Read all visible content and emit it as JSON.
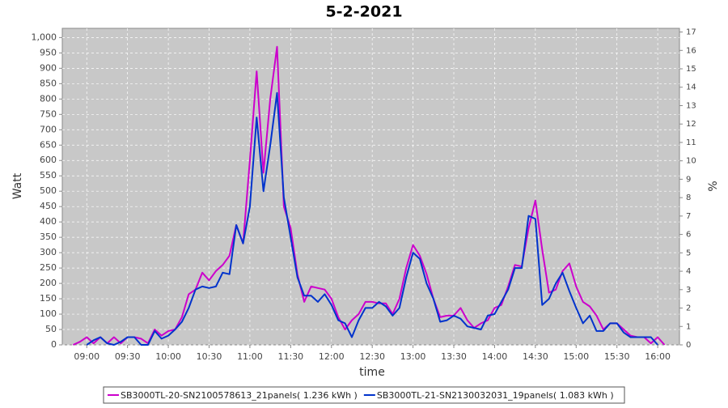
{
  "chart_data": {
    "type": "line",
    "title": "5-2-2021",
    "x_label": "time",
    "y_label": "Watt",
    "y2_label": "%",
    "x": [
      "08:50",
      "08:55",
      "09:00",
      "09:05",
      "09:10",
      "09:15",
      "09:20",
      "09:25",
      "09:30",
      "09:35",
      "09:40",
      "09:45",
      "09:50",
      "09:55",
      "10:00",
      "10:05",
      "10:10",
      "10:15",
      "10:20",
      "10:25",
      "10:30",
      "10:35",
      "10:40",
      "10:45",
      "10:50",
      "10:55",
      "11:00",
      "11:05",
      "11:10",
      "11:15",
      "11:20",
      "11:25",
      "11:30",
      "11:35",
      "11:40",
      "11:45",
      "11:50",
      "11:55",
      "12:00",
      "12:05",
      "12:10",
      "12:15",
      "12:20",
      "12:25",
      "12:30",
      "12:35",
      "12:40",
      "12:45",
      "12:50",
      "12:55",
      "13:00",
      "13:05",
      "13:10",
      "13:15",
      "13:20",
      "13:25",
      "13:30",
      "13:35",
      "13:40",
      "13:45",
      "13:50",
      "13:55",
      "14:00",
      "14:05",
      "14:10",
      "14:15",
      "14:20",
      "14:25",
      "14:30",
      "14:35",
      "14:40",
      "14:45",
      "14:50",
      "14:55",
      "15:00",
      "15:05",
      "15:10",
      "15:15",
      "15:20",
      "15:25",
      "15:30",
      "15:35",
      "15:40",
      "15:45",
      "15:50",
      "15:55",
      "16:00",
      "16:05"
    ],
    "series": [
      {
        "name": "SB3000TL-20-SN2100578613_21panels( 1.236 kWh )",
        "color": "#cc00cc",
        "values": [
          0,
          10,
          25,
          5,
          25,
          5,
          25,
          5,
          25,
          25,
          20,
          5,
          50,
          30,
          45,
          50,
          90,
          165,
          180,
          235,
          210,
          240,
          260,
          290,
          390,
          330,
          600,
          890,
          560,
          800,
          970,
          450,
          380,
          230,
          140,
          190,
          185,
          180,
          150,
          90,
          50,
          80,
          100,
          140,
          140,
          135,
          135,
          100,
          150,
          250,
          325,
          290,
          230,
          150,
          90,
          95,
          95,
          120,
          80,
          55,
          70,
          80,
          120,
          130,
          190,
          260,
          255,
          380,
          470,
          310,
          170,
          180,
          240,
          265,
          190,
          140,
          125,
          95,
          50,
          70,
          70,
          50,
          30,
          25,
          25,
          5,
          25,
          0
        ]
      },
      {
        "name": "SB3000TL-21-SN2130032031_19panels( 1.083 kWh )",
        "color": "#0033cc",
        "values": [
          null,
          null,
          0,
          15,
          25,
          5,
          0,
          10,
          25,
          25,
          0,
          0,
          45,
          20,
          30,
          50,
          75,
          120,
          180,
          190,
          185,
          190,
          235,
          230,
          390,
          330,
          450,
          740,
          500,
          650,
          820,
          480,
          350,
          220,
          160,
          160,
          140,
          165,
          130,
          80,
          70,
          25,
          80,
          120,
          120,
          140,
          125,
          95,
          120,
          220,
          300,
          280,
          200,
          150,
          75,
          80,
          95,
          85,
          60,
          55,
          50,
          95,
          100,
          140,
          180,
          250,
          250,
          420,
          410,
          130,
          150,
          200,
          235,
          175,
          120,
          70,
          95,
          45,
          45,
          70,
          70,
          40,
          25,
          25,
          25,
          25,
          0,
          null
        ]
      }
    ],
    "xlim": [
      "08:42",
      "16:16"
    ],
    "xticks": [
      "09:00",
      "09:30",
      "10:00",
      "10:30",
      "11:00",
      "11:30",
      "12:00",
      "12:30",
      "13:00",
      "13:30",
      "14:00",
      "14:30",
      "15:00",
      "15:30",
      "16:00"
    ],
    "ylim": [
      0,
      1030
    ],
    "yticks": [
      0,
      50,
      100,
      150,
      200,
      250,
      300,
      350,
      400,
      450,
      500,
      550,
      600,
      650,
      700,
      750,
      800,
      850,
      900,
      950,
      {
        "value": 1000,
        "label": "1,000"
      }
    ],
    "y2lim": [
      0,
      17.2
    ],
    "y2ticks": [
      0,
      1,
      2,
      3,
      4,
      5,
      6,
      7,
      8,
      9,
      10,
      11,
      12,
      13,
      14,
      15,
      16,
      17
    ],
    "grid": true,
    "legend": "bottom"
  }
}
